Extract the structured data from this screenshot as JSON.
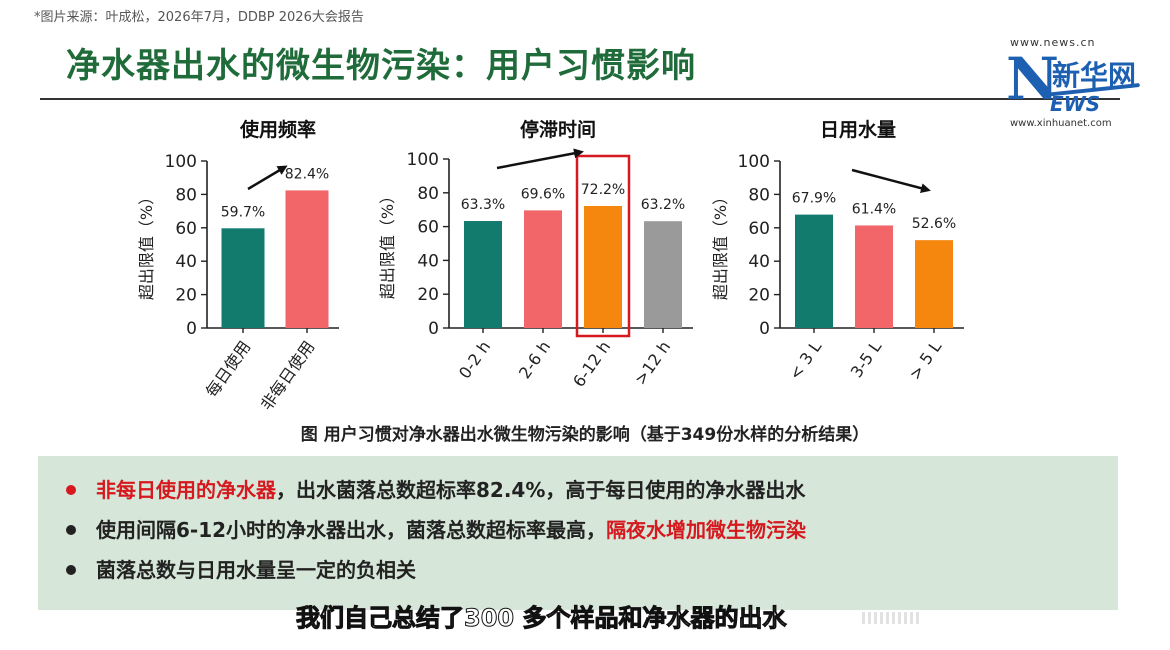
{
  "source_note": "*图片来源：叶成松，2026年7月，DDBP 2026大会报告",
  "slide_title": "净水器出水的微生物污染：用户习惯影响",
  "logo": {
    "url_top": "www.news.cn",
    "url_bottom": "www.xinhuanet.com",
    "brand_cn": "新华网",
    "brand_en_n": "N",
    "brand_en_rest": "EWS"
  },
  "colors": {
    "teal": "#137a6e",
    "salmon": "#f2666a",
    "orange": "#f5870f",
    "gray": "#9a9a9a",
    "highlight_red": "#d6181f",
    "title_green": "#1f6b3a"
  },
  "chart_data": [
    {
      "type": "bar",
      "title": "使用频率",
      "ylabel": "超出限值（%）",
      "ylim": [
        0,
        100
      ],
      "yticks": [
        "0",
        "20",
        "40",
        "60",
        "80",
        "100"
      ],
      "categories": [
        "每日使用",
        "非每日使用"
      ],
      "values": [
        59.7,
        82.4
      ],
      "value_labels": [
        "59.7%",
        "82.4%"
      ],
      "colors": [
        "teal",
        "salmon"
      ]
    },
    {
      "type": "bar",
      "title": "停滞时间",
      "ylabel": "超出限值（%）",
      "ylim": [
        0,
        100
      ],
      "yticks": [
        "0",
        "20",
        "40",
        "60",
        "80",
        "100"
      ],
      "categories": [
        "0-2 h",
        "2-6 h",
        "6-12 h",
        ">12 h"
      ],
      "values": [
        63.3,
        69.6,
        72.2,
        63.2
      ],
      "value_labels": [
        "63.3%",
        "69.6%",
        "72.2%",
        "63.2%"
      ],
      "colors": [
        "teal",
        "salmon",
        "orange",
        "gray"
      ],
      "highlight_index": 2
    },
    {
      "type": "bar",
      "title": "日用水量",
      "ylabel": "超出限值（%）",
      "ylim": [
        0,
        100
      ],
      "yticks": [
        "0",
        "20",
        "40",
        "60",
        "80",
        "100"
      ],
      "categories": [
        "< 3 L",
        "3-5 L",
        "> 5 L"
      ],
      "values": [
        67.9,
        61.4,
        52.6
      ],
      "value_labels": [
        "67.9%",
        "61.4%",
        "52.6%"
      ],
      "colors": [
        "teal",
        "salmon",
        "orange"
      ]
    }
  ],
  "caption": "图 用户习惯对净水器出水微生物污染的影响（基于349份水样的分析结果）",
  "bullets": [
    {
      "highlight": "非每日使用的净水器",
      "rest": "，出水菌落总数超标率82.4%，高于每日使用的净水器出水"
    },
    {
      "lead": "使用间隔6-12小时的净水器出水，菌落总数超标率最高，",
      "highlight": "隔夜水增加微生物污染"
    },
    {
      "lead": "菌落总数与日用水量呈一定的负相关"
    }
  ],
  "subtitle": "我们自己总结了300 多个样品和净水器的出水"
}
